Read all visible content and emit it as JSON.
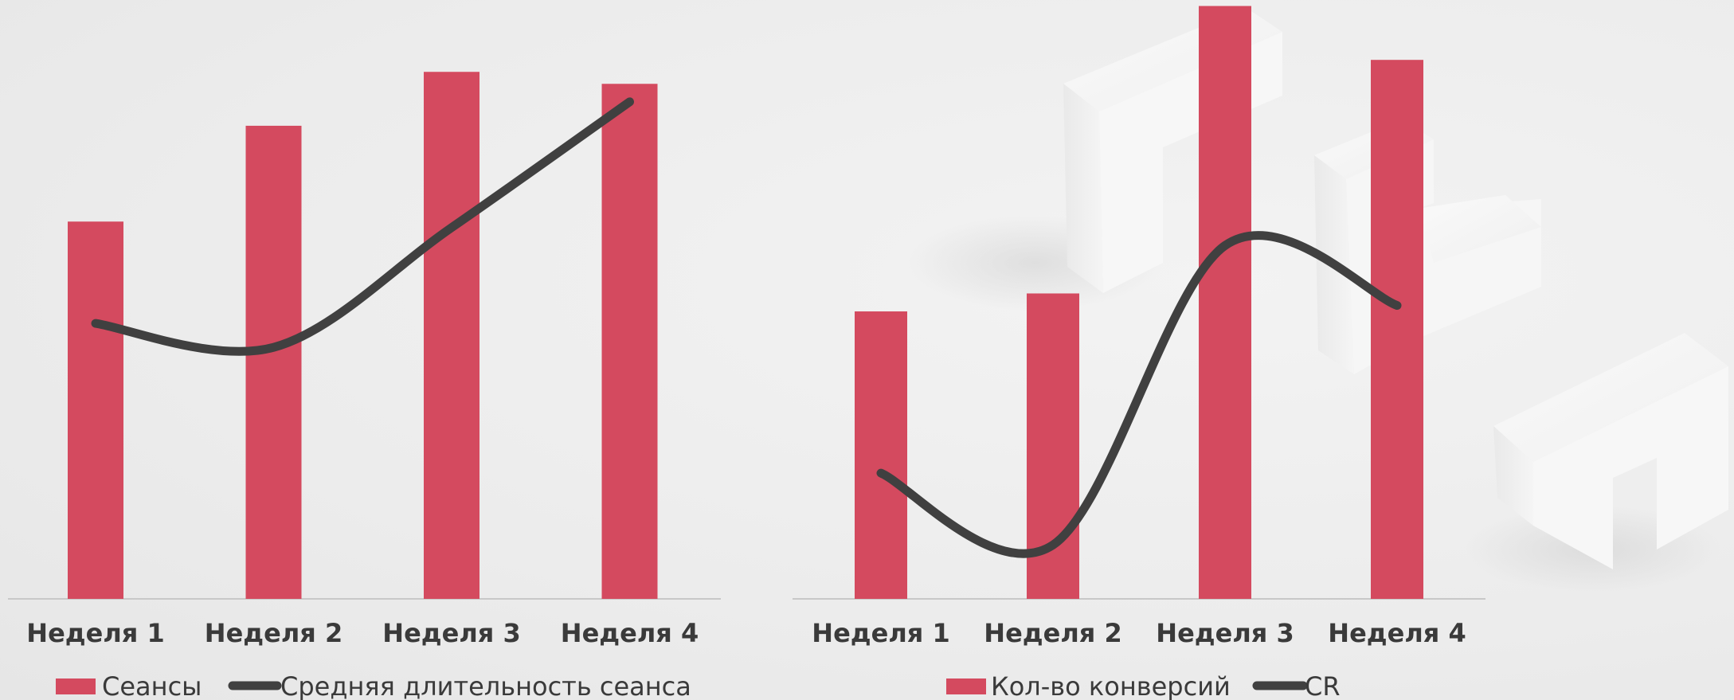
{
  "colors": {
    "bar": "#d44a5f",
    "line": "#404040",
    "axis": "#c8c8c8",
    "text": "#3a3a3a"
  },
  "chart_data": [
    {
      "type": "bar",
      "categories": [
        "Неделя 1",
        "Неделя 2",
        "Неделя 3",
        "Неделя 4"
      ],
      "series": [
        {
          "name": "Сеансы",
          "kind": "bar",
          "values": [
            63,
            79,
            88,
            86
          ]
        },
        {
          "name": "Средняя длительность сеанса",
          "kind": "line",
          "values": [
            46,
            42,
            62,
            83
          ]
        }
      ],
      "ylim": [
        0,
        100
      ],
      "title": "",
      "xlabel": "",
      "ylabel": "",
      "grid": false,
      "legend_position": "bottom"
    },
    {
      "type": "bar",
      "categories": [
        "Неделя 1",
        "Неделя 2",
        "Неделя 3",
        "Неделя 4"
      ],
      "series": [
        {
          "name": "Кол-во конверсий",
          "kind": "bar",
          "values": [
            48,
            51,
            99,
            90
          ]
        },
        {
          "name": "CR",
          "kind": "line",
          "values": [
            21,
            9,
            59,
            49
          ]
        }
      ],
      "ylim": [
        0,
        100
      ],
      "title": "",
      "xlabel": "",
      "ylabel": "",
      "grid": false,
      "legend_position": "bottom"
    }
  ]
}
